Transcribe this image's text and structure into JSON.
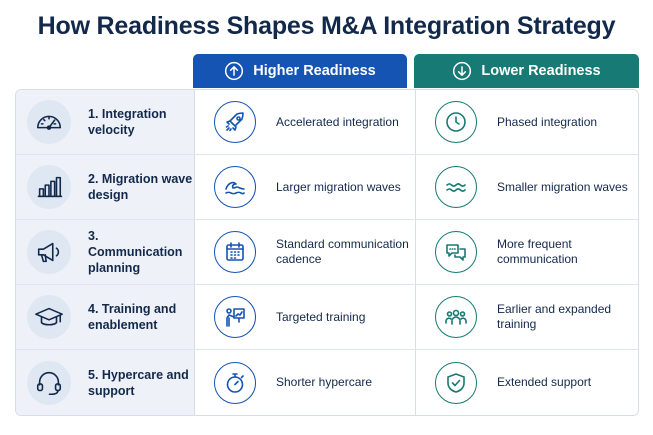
{
  "title": "How Readiness Shapes M&A Integration Strategy",
  "columns": {
    "higher": {
      "label": "Higher Readiness",
      "icon": "arrow-up-circle-icon",
      "color": "#1554b3"
    },
    "lower": {
      "label": "Lower Readiness",
      "icon": "arrow-down-circle-icon",
      "color": "#177a74"
    }
  },
  "rows": [
    {
      "factor": "1. Integration velocity",
      "factor_icon": "speedometer-icon",
      "higher": "Accelerated integration",
      "higher_icon": "rocket-icon",
      "lower": "Phased integration",
      "lower_icon": "clock-icon"
    },
    {
      "factor": "2. Migration wave design",
      "factor_icon": "bar-chart-icon",
      "higher": "Larger migration waves",
      "higher_icon": "large-wave-icon",
      "lower": "Smaller migration waves",
      "lower_icon": "small-wave-icon"
    },
    {
      "factor": "3. Communication planning",
      "factor_icon": "megaphone-icon",
      "higher": "Standard communication cadence",
      "higher_icon": "calendar-icon",
      "lower": "More frequent communication",
      "lower_icon": "chat-bubbles-icon"
    },
    {
      "factor": "4. Training and enablement",
      "factor_icon": "graduation-cap-icon",
      "higher": "Targeted training",
      "higher_icon": "presenter-icon",
      "lower": "Earlier and expanded training",
      "lower_icon": "group-icon"
    },
    {
      "factor": "5. Hypercare and support",
      "factor_icon": "headset-icon",
      "higher": "Shorter hypercare",
      "higher_icon": "stopwatch-icon",
      "lower": "Extended support",
      "lower_icon": "shield-check-icon"
    }
  ]
}
